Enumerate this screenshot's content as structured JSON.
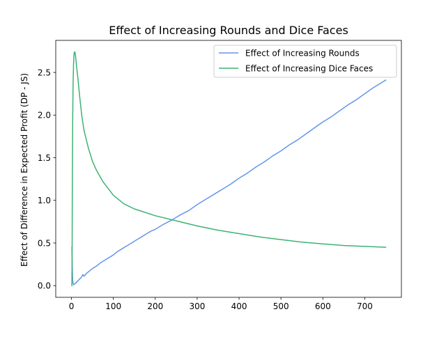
{
  "colors": {
    "rounds": "#6495ED",
    "faces": "#3CB371",
    "axes": "#000000",
    "background": "#ffffff"
  },
  "chart_data": {
    "type": "line",
    "title": "Effect of Increasing Rounds and Dice Faces",
    "xlabel": "",
    "ylabel": "Effect of Difference in Expected Profit (DP - JS)",
    "xlim": [
      -37.5,
      787.5
    ],
    "ylim": [
      -0.137,
      2.876
    ],
    "xticks": [
      0,
      100,
      200,
      300,
      400,
      500,
      600,
      700
    ],
    "yticks": [
      0.0,
      0.5,
      1.0,
      1.5,
      2.0,
      2.5
    ],
    "xtick_labels": [
      "0",
      "100",
      "200",
      "300",
      "400",
      "500",
      "600",
      "700"
    ],
    "ytick_labels": [
      "0.0",
      "0.5",
      "1.0",
      "1.5",
      "2.0",
      "2.5"
    ],
    "grid": false,
    "legend_position": "top-right",
    "series": [
      {
        "name": "Effect of Increasing Rounds",
        "color": "#6495ED",
        "x": [
          1,
          2,
          3,
          5,
          8,
          12,
          16,
          20,
          24,
          27,
          30,
          35,
          40,
          45,
          50,
          60,
          70,
          80,
          90,
          100,
          110,
          120,
          130,
          140,
          150,
          160,
          170,
          180,
          190,
          200,
          220,
          240,
          260,
          280,
          300,
          320,
          340,
          360,
          380,
          400,
          420,
          440,
          460,
          480,
          500,
          520,
          540,
          560,
          580,
          600,
          620,
          640,
          660,
          680,
          700,
          720,
          740,
          750
        ],
        "y": [
          0.45,
          0.2,
          0.05,
          0.01,
          0.02,
          0.04,
          0.06,
          0.08,
          0.1,
          0.13,
          0.11,
          0.14,
          0.16,
          0.18,
          0.2,
          0.23,
          0.27,
          0.3,
          0.33,
          0.36,
          0.4,
          0.43,
          0.46,
          0.49,
          0.52,
          0.55,
          0.58,
          0.61,
          0.64,
          0.66,
          0.72,
          0.77,
          0.83,
          0.88,
          0.95,
          1.01,
          1.07,
          1.13,
          1.19,
          1.26,
          1.32,
          1.39,
          1.45,
          1.52,
          1.58,
          1.65,
          1.71,
          1.78,
          1.85,
          1.92,
          1.98,
          2.05,
          2.12,
          2.18,
          2.25,
          2.32,
          2.38,
          2.41
        ]
      },
      {
        "name": "Effect of Increasing Dice Faces",
        "color": "#3CB371",
        "x": [
          1,
          1.5,
          2,
          3,
          4,
          5,
          6,
          7,
          8,
          9,
          10,
          12,
          15,
          20,
          25,
          30,
          40,
          50,
          60,
          75,
          100,
          125,
          150,
          200,
          250,
          300,
          350,
          400,
          450,
          500,
          550,
          600,
          650,
          700,
          750
        ],
        "y": [
          0.0,
          0.3,
          1.1,
          2.0,
          2.4,
          2.6,
          2.7,
          2.74,
          2.74,
          2.72,
          2.68,
          2.58,
          2.45,
          2.2,
          1.98,
          1.82,
          1.62,
          1.46,
          1.35,
          1.22,
          1.06,
          0.96,
          0.9,
          0.82,
          0.76,
          0.7,
          0.65,
          0.61,
          0.57,
          0.54,
          0.51,
          0.49,
          0.47,
          0.46,
          0.45
        ]
      }
    ]
  }
}
